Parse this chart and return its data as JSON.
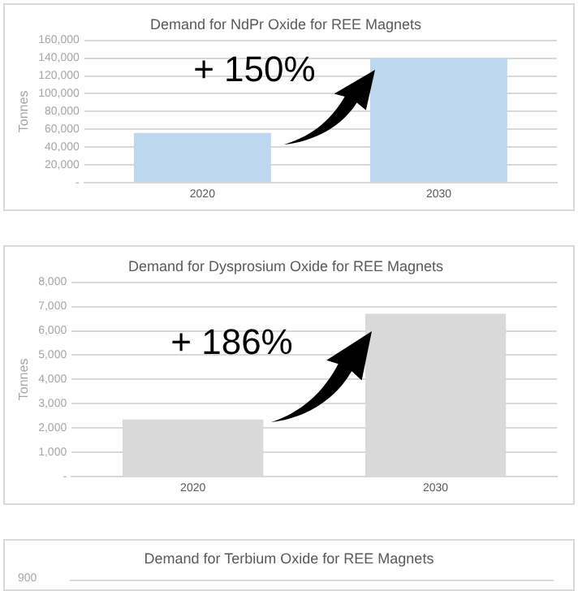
{
  "chart_data": [
    {
      "type": "bar",
      "title": "Demand for NdPr Oxide for REE Magnets",
      "ylabel": "Tonnes",
      "categories": [
        "2020",
        "2030"
      ],
      "values": [
        56000,
        140000
      ],
      "color": "#bdd7ee",
      "ylim": [
        0,
        160000
      ],
      "yticks": [
        {
          "value": 0,
          "label": "-"
        },
        {
          "value": 20000,
          "label": "20,000"
        },
        {
          "value": 40000,
          "label": "40,000"
        },
        {
          "value": 60000,
          "label": "60,000"
        },
        {
          "value": 80000,
          "label": "80,000"
        },
        {
          "value": 100000,
          "label": "100,000"
        },
        {
          "value": 120000,
          "label": "120,000"
        },
        {
          "value": 140000,
          "label": "140,000"
        },
        {
          "value": 160000,
          "label": "160,000"
        }
      ],
      "grid": "y",
      "annotations": [
        "+ 150%"
      ]
    },
    {
      "type": "bar",
      "title": "Demand for Dysprosium Oxide for REE Magnets",
      "ylabel": "Tonnes",
      "categories": [
        "2020",
        "2030"
      ],
      "values": [
        2350,
        6700
      ],
      "color": "#d9d9d9",
      "ylim": [
        0,
        8000
      ],
      "yticks": [
        {
          "value": 0,
          "label": "-"
        },
        {
          "value": 1000,
          "label": "1,000"
        },
        {
          "value": 2000,
          "label": "2,000"
        },
        {
          "value": 3000,
          "label": "3,000"
        },
        {
          "value": 4000,
          "label": "4,000"
        },
        {
          "value": 5000,
          "label": "5,000"
        },
        {
          "value": 6000,
          "label": "6,000"
        },
        {
          "value": 7000,
          "label": "7,000"
        },
        {
          "value": 8000,
          "label": "8,000"
        }
      ],
      "grid": "y",
      "annotations": [
        "+ 186%"
      ]
    },
    {
      "type": "other",
      "title": "Demand for Terbium Oxide for REE Magnets",
      "annotations": [
        "900"
      ]
    }
  ]
}
